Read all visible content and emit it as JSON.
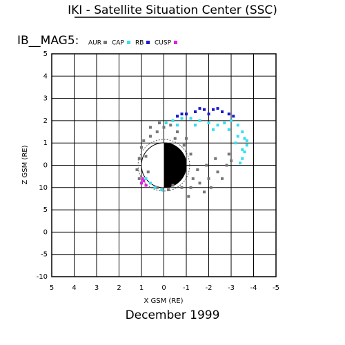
{
  "chart_data": {
    "type": "scatter",
    "title": "IKI - Satellite Situation Center (SSC)",
    "subtitle": "IB__MAG5:",
    "footer": "December    1999",
    "x_label": "X GSM (RE)",
    "y_label": "Z GSM (RE)",
    "xlim": [
      5,
      -5
    ],
    "ylim": [
      -5,
      5
    ],
    "xticks": [
      5,
      4,
      3,
      2,
      1,
      0,
      -1,
      -2,
      -3,
      -4,
      -5
    ],
    "yticks": [
      5,
      4,
      3,
      2,
      1,
      0,
      {
        "value": -1,
        "label": "10"
      },
      {
        "value": -2,
        "label": "5"
      },
      {
        "value": -3,
        "label": "0"
      },
      {
        "value": -4,
        "label": "-5"
      },
      {
        "value": -5,
        "label": "-10"
      }
    ],
    "grid": true,
    "series": [
      {
        "name": "AUR",
        "color": "#777777",
        "x": [
          1,
          1.1,
          1.2,
          1.1,
          0.9,
          0.6,
          0.3,
          0,
          -0.3,
          -0.6,
          -1,
          -1.2,
          -0.4,
          -0.8,
          -1.2,
          -1.6,
          -2,
          -2.4,
          -2.8,
          -3,
          -1.5,
          -1.9,
          -2.3,
          -1.8,
          -1.3,
          -2.6,
          -0.2,
          0.3,
          0.8,
          0.7,
          0.8,
          -0.9,
          -2.1,
          -1.1,
          -2.9,
          -0.5,
          0.2,
          0.6
        ],
        "y": [
          0.8,
          0.3,
          -0.2,
          -0.6,
          1.1,
          1.3,
          1.5,
          1.7,
          1.8,
          1.5,
          1.2,
          0.5,
          -0.9,
          -1,
          -1,
          -0.8,
          -0.6,
          -0.3,
          0,
          0.2,
          -0.2,
          0,
          0.3,
          -1.2,
          -0.6,
          -0.6,
          -1.1,
          -1.0,
          -0.9,
          -0.3,
          0.4,
          0.9,
          -1,
          -1.4,
          0.5,
          1.2,
          1.9,
          1.7
        ]
      },
      {
        "name": "CAP",
        "color": "#33e0f0",
        "x": [
          -0.1,
          -0.4,
          -0.8,
          -1.2,
          -1.6,
          -2.0,
          -2.4,
          -2.7,
          -3.0,
          -3.3,
          -3.5,
          -3.6,
          -3.7,
          -3.6,
          -3.5,
          -3.4,
          -3.2,
          -3.3,
          -0.6,
          -1.4,
          -2.2,
          0.6,
          0.4,
          0.1,
          0.8,
          -3.7,
          -3.5,
          -2.9
        ],
        "y": [
          1.9,
          2.0,
          2.1,
          2.1,
          2.0,
          1.9,
          1.8,
          1.9,
          2.0,
          1.8,
          1.5,
          1.2,
          0.9,
          0.6,
          0.3,
          0.1,
          1.0,
          1.3,
          1.8,
          1.8,
          1.6,
          -0.8,
          -1.0,
          -1.1,
          -0.6,
          1.1,
          0.7,
          1.6
        ]
      },
      {
        "name": "RB",
        "color": "#1a1ad0",
        "x": [
          -0.6,
          -1.0,
          -1.4,
          -1.8,
          -2.2,
          -2.6,
          -2.9,
          -3.1,
          -1.6,
          -2.4,
          -0.8,
          -2.0
        ],
        "y": [
          2.2,
          2.3,
          2.4,
          2.5,
          2.5,
          2.4,
          2.3,
          2.2,
          2.55,
          2.55,
          2.3,
          2.3
        ]
      },
      {
        "name": "CUSP",
        "color": "#e020e0",
        "x": [
          0.9,
          1.0,
          0.8,
          0.95
        ],
        "y": [
          -0.7,
          -0.8,
          -0.9,
          -0.6
        ]
      }
    ]
  }
}
